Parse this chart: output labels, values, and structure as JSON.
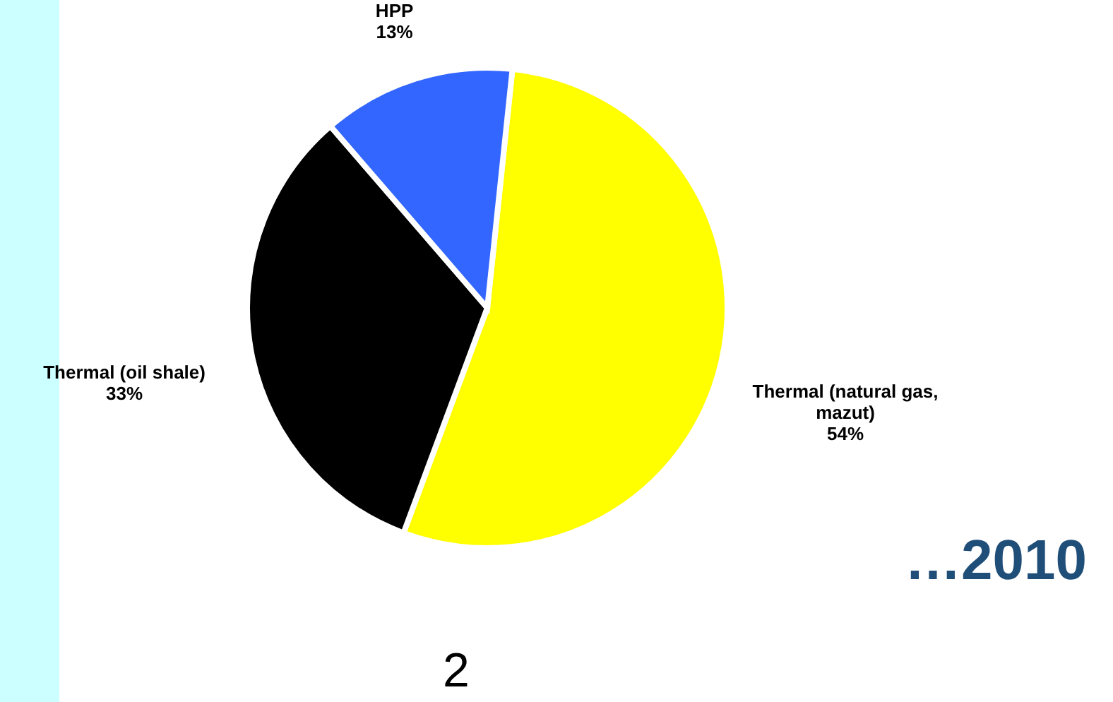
{
  "chart_data": {
    "type": "pie",
    "categories": [
      "Thermal (natural gas, mazut)",
      "Thermal (oil shale)",
      "HPP"
    ],
    "values": [
      54,
      33,
      13
    ],
    "colors": [
      "#ffff00",
      "#000000",
      "#3366ff"
    ],
    "value_labels": [
      "54%",
      "33%",
      "13%"
    ],
    "annotations": [
      "…2010",
      "2"
    ]
  }
}
